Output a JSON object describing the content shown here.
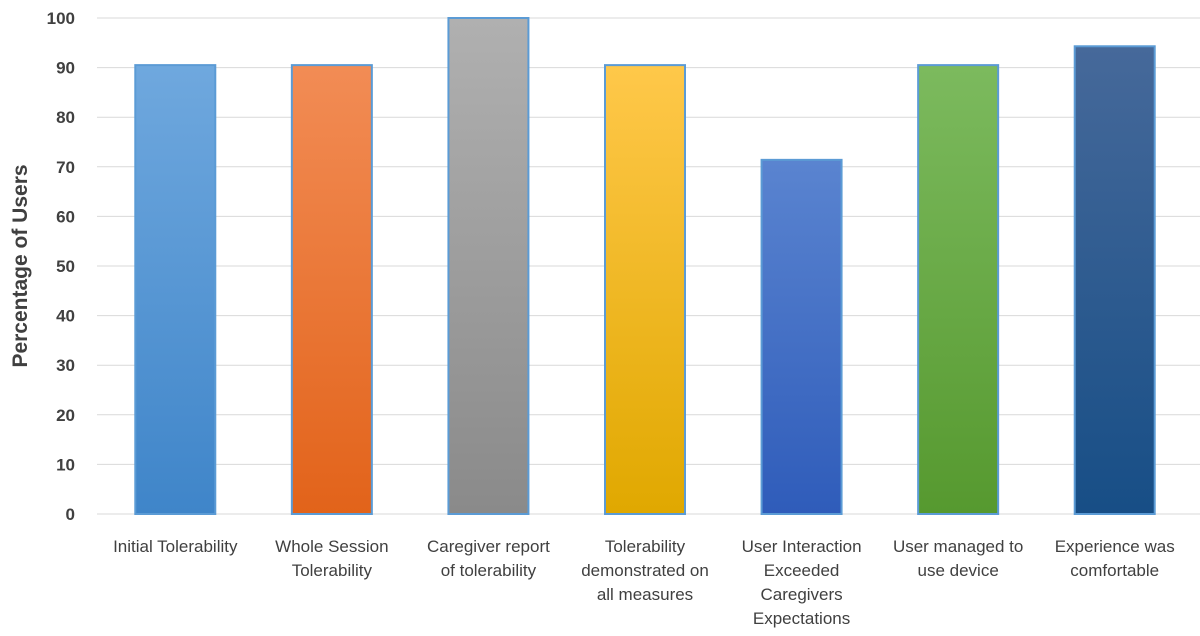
{
  "chart_data": {
    "type": "bar",
    "title": "",
    "xlabel": "",
    "ylabel": "Percentage of Users",
    "ylim": [
      0,
      100
    ],
    "yticks": [
      0,
      10,
      20,
      30,
      40,
      50,
      60,
      70,
      80,
      90,
      100
    ],
    "grid": true,
    "legend": "none",
    "categories": [
      [
        "Initial Tolerability"
      ],
      [
        "Whole Session",
        "Tolerability"
      ],
      [
        "Caregiver report",
        "of tolerability"
      ],
      [
        "Tolerability",
        "demonstrated on",
        "all measures"
      ],
      [
        "User Interaction",
        "Exceeded",
        "Caregivers",
        "Expectations"
      ],
      [
        "User managed to",
        "use device"
      ],
      [
        "Experience was",
        "comfortable"
      ]
    ],
    "values": [
      90.5,
      90.5,
      100,
      90.5,
      71.4,
      90.5,
      94.3
    ],
    "colors": [
      [
        "#6fa8de",
        "#3f85c9"
      ],
      [
        "#f28c55",
        "#e2631a"
      ],
      [
        "#b0b0b0",
        "#8a8a8a"
      ],
      [
        "#ffc84a",
        "#e0a800"
      ],
      [
        "#5a84d0",
        "#2f5cba"
      ],
      [
        "#7cba5e",
        "#56992f"
      ],
      [
        "#46699a",
        "#174e86"
      ]
    ]
  }
}
